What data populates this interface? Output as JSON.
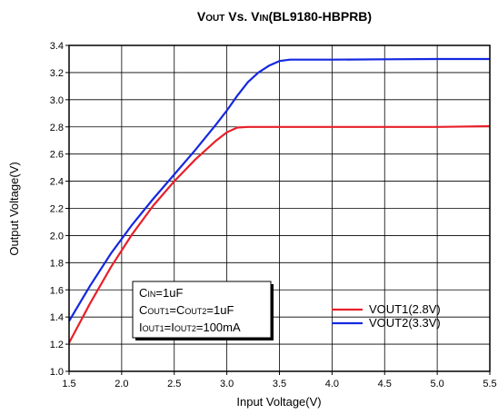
{
  "chart_data": {
    "type": "line",
    "title": {
      "parts": [
        {
          "text": "V",
          "sub": false
        },
        {
          "text": "OUT",
          "sub": true
        },
        {
          "text": " Vs. V",
          "sub": false
        },
        {
          "text": "IN",
          "sub": true
        },
        {
          "text": "(BL9180-HBPRB)",
          "sub": false
        }
      ]
    },
    "xlabel": "Input Voltage(V)",
    "ylabel": "Output Voltage(V)",
    "xlim": [
      1.5,
      5.5
    ],
    "ylim": [
      1.0,
      3.4
    ],
    "xticks": [
      "1.5",
      "2.0",
      "2.5",
      "3.0",
      "3.5",
      "4.0",
      "4.5",
      "5.0",
      "5.5"
    ],
    "yticks": [
      "1.0",
      "1.2",
      "1.4",
      "1.6",
      "1.8",
      "2.0",
      "2.2",
      "2.4",
      "2.6",
      "2.8",
      "3.0",
      "3.2",
      "3.4"
    ],
    "grid": true,
    "legend_position": "bottom-right",
    "series": [
      {
        "name": "VOUT1(2.8V)",
        "color": "#e8202a",
        "x": [
          1.5,
          1.7,
          1.9,
          2.1,
          2.3,
          2.5,
          2.7,
          2.9,
          3.0,
          3.1,
          3.2,
          3.5,
          4.0,
          4.5,
          5.0,
          5.5
        ],
        "y": [
          1.21,
          1.5,
          1.77,
          2.01,
          2.22,
          2.4,
          2.56,
          2.7,
          2.76,
          2.795,
          2.8,
          2.8,
          2.8,
          2.8,
          2.8,
          2.805
        ]
      },
      {
        "name": "VOUT2(3.3V)",
        "color": "#1428e0",
        "x": [
          1.5,
          1.7,
          1.9,
          2.1,
          2.3,
          2.5,
          2.7,
          2.9,
          3.0,
          3.1,
          3.2,
          3.3,
          3.4,
          3.5,
          3.6,
          4.0,
          4.5,
          5.0,
          5.5
        ],
        "y": [
          1.37,
          1.63,
          1.87,
          2.08,
          2.27,
          2.45,
          2.63,
          2.82,
          2.92,
          3.03,
          3.13,
          3.2,
          3.25,
          3.285,
          3.295,
          3.295,
          3.298,
          3.3,
          3.3
        ]
      }
    ],
    "annotation": {
      "lines": [
        {
          "parts": [
            {
              "text": "C",
              "sub": false
            },
            {
              "text": "IN",
              "sub": true
            },
            {
              "text": "=1uF",
              "sub": false
            }
          ]
        },
        {
          "parts": [
            {
              "text": "C",
              "sub": false
            },
            {
              "text": "OUT1",
              "sub": true
            },
            {
              "text": "=C",
              "sub": false
            },
            {
              "text": "OUT2",
              "sub": true
            },
            {
              "text": "=1uF",
              "sub": false
            }
          ]
        },
        {
          "parts": [
            {
              "text": "I",
              "sub": false
            },
            {
              "text": "OUT1",
              "sub": true
            },
            {
              "text": "=I",
              "sub": false
            },
            {
              "text": "OUT2",
              "sub": true
            },
            {
              "text": "=100mA",
              "sub": false
            }
          ]
        }
      ]
    }
  }
}
